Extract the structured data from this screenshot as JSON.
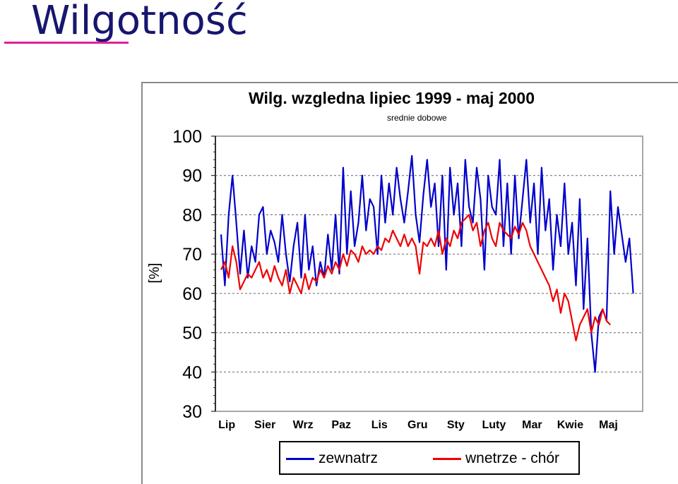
{
  "slide": {
    "title": "Wilgotność"
  },
  "chart_data": {
    "type": "line",
    "title": "Wilg. wzgledna  lipiec 1999 - maj 2000",
    "subtitle": "srednie dobowe",
    "ylabel": "[%]",
    "xlabel": "",
    "ylim": [
      30,
      100
    ],
    "yticks": [
      30,
      40,
      50,
      60,
      70,
      80,
      90,
      100
    ],
    "grid": "dotted horizontal",
    "legend_position": "bottom",
    "categories": [
      "Lip",
      "Sier",
      "Wrz",
      "Paz",
      "Lis",
      "Gru",
      "Sty",
      "Luty",
      "Mar",
      "Kwie",
      "Maj"
    ],
    "series": [
      {
        "name": "zewnatrz",
        "color": "#0000cc",
        "x": [
          0.0,
          0.1,
          0.2,
          0.3,
          0.4,
          0.5,
          0.6,
          0.7,
          0.8,
          0.9,
          1.0,
          1.1,
          1.2,
          1.3,
          1.4,
          1.5,
          1.6,
          1.7,
          1.8,
          1.9,
          2.0,
          2.1,
          2.2,
          2.3,
          2.4,
          2.5,
          2.6,
          2.7,
          2.8,
          2.9,
          3.0,
          3.1,
          3.2,
          3.3,
          3.4,
          3.5,
          3.6,
          3.7,
          3.8,
          3.9,
          4.0,
          4.1,
          4.2,
          4.3,
          4.4,
          4.5,
          4.6,
          4.7,
          4.8,
          4.9,
          5.0,
          5.1,
          5.2,
          5.3,
          5.4,
          5.5,
          5.6,
          5.7,
          5.8,
          5.9,
          6.0,
          6.1,
          6.2,
          6.3,
          6.4,
          6.5,
          6.6,
          6.7,
          6.8,
          6.9,
          7.0,
          7.1,
          7.2,
          7.3,
          7.4,
          7.5,
          7.6,
          7.7,
          7.8,
          7.9,
          8.0,
          8.1,
          8.2,
          8.3,
          8.4,
          8.5,
          8.6,
          8.7,
          8.8,
          8.9,
          9.0,
          9.1,
          9.2,
          9.3,
          9.4,
          9.5,
          9.6,
          9.7,
          9.8,
          9.9,
          10.0,
          10.1,
          10.2,
          10.3,
          10.4,
          10.6,
          10.7,
          10.8
        ],
        "values": [
          75,
          62,
          80,
          90,
          78,
          65,
          76,
          64,
          72,
          68,
          80,
          82,
          70,
          76,
          73,
          68,
          80,
          70,
          63,
          72,
          78,
          64,
          80,
          66,
          72,
          62,
          68,
          64,
          75,
          66,
          80,
          65,
          92,
          70,
          86,
          72,
          78,
          90,
          76,
          84,
          82,
          70,
          90,
          78,
          88,
          80,
          92,
          84,
          78,
          86,
          95,
          80,
          73,
          85,
          94,
          82,
          88,
          72,
          90,
          66,
          92,
          80,
          88,
          72,
          94,
          82,
          78,
          92,
          84,
          66,
          90,
          82,
          80,
          94,
          72,
          88,
          70,
          90,
          74,
          84,
          94,
          78,
          88,
          70,
          92,
          76,
          84,
          66,
          80,
          72,
          88,
          70,
          78,
          62,
          84,
          56,
          74,
          50,
          40,
          54,
          56,
          53,
          86,
          70,
          82,
          68,
          74,
          60
        ],
        "x_gap_from": 10.0,
        "x_resume_at": 10.1
      },
      {
        "name": "wnetrze - chór",
        "color": "#ee0000",
        "x": [
          0.0,
          0.1,
          0.2,
          0.3,
          0.4,
          0.5,
          0.6,
          0.7,
          0.8,
          0.9,
          1.0,
          1.1,
          1.2,
          1.3,
          1.4,
          1.5,
          1.6,
          1.7,
          1.8,
          1.9,
          2.0,
          2.1,
          2.2,
          2.3,
          2.4,
          2.5,
          2.6,
          2.7,
          2.8,
          2.9,
          3.0,
          3.1,
          3.2,
          3.3,
          3.4,
          3.5,
          3.6,
          3.7,
          3.8,
          3.9,
          4.0,
          4.1,
          4.2,
          4.3,
          4.4,
          4.5,
          4.6,
          4.7,
          4.8,
          4.9,
          5.0,
          5.1,
          5.2,
          5.3,
          5.4,
          5.5,
          5.6,
          5.7,
          5.8,
          5.9,
          6.0,
          6.1,
          6.2,
          6.3,
          6.4,
          6.5,
          6.6,
          6.7,
          6.8,
          6.9,
          7.0,
          7.1,
          7.2,
          7.3,
          7.4,
          7.5,
          7.6,
          7.7,
          7.8,
          7.9,
          8.0,
          8.1,
          8.2,
          8.3,
          8.4,
          8.5,
          8.6,
          8.7,
          8.8,
          8.9,
          9.0,
          9.1,
          9.2,
          9.3,
          9.4,
          9.5,
          9.6,
          9.7,
          9.8,
          9.9,
          10.0,
          10.1,
          10.2
        ],
        "values": [
          66,
          68,
          64,
          72,
          68,
          61,
          63,
          65,
          64,
          66,
          68,
          64,
          66,
          63,
          67,
          64,
          62,
          66,
          60,
          64,
          62,
          60,
          65,
          61,
          64,
          63,
          66,
          64,
          67,
          65,
          68,
          66,
          70,
          67,
          71,
          70,
          68,
          72,
          70,
          71,
          70,
          72,
          71,
          74,
          73,
          76,
          74,
          72,
          75,
          72,
          74,
          72,
          65,
          73,
          72,
          74,
          72,
          76,
          70,
          74,
          72,
          76,
          74,
          78,
          79,
          80,
          76,
          78,
          72,
          76,
          78,
          74,
          72,
          78,
          76,
          75,
          74,
          77,
          75,
          78,
          76,
          72,
          70,
          68,
          66,
          64,
          62,
          58,
          61,
          55,
          60,
          58,
          53,
          48,
          52,
          54,
          56,
          50,
          54,
          52,
          56,
          53,
          52
        ]
      }
    ]
  }
}
